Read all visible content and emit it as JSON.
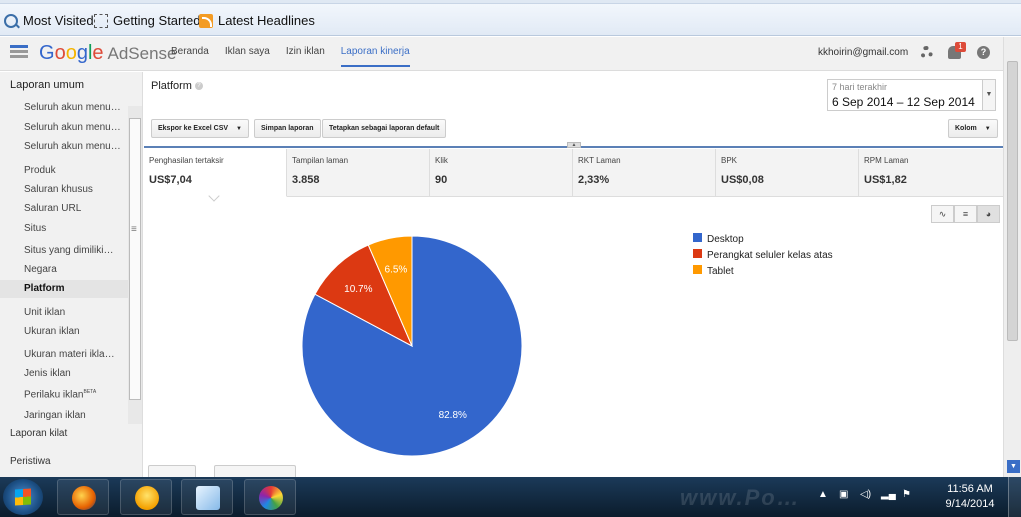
{
  "bookmarks": [
    {
      "label": "Most Visited",
      "icon": "most-visited-icon"
    },
    {
      "label": "Getting Started",
      "icon": "page-icon"
    },
    {
      "label": "Latest Headlines",
      "icon": "rss-icon"
    }
  ],
  "header": {
    "logo_google": "Google",
    "logo_product": "AdSense",
    "nav": [
      "Beranda",
      "Iklan saya",
      "Izin iklan",
      "Laporan kinerja"
    ],
    "active_nav": "Laporan kinerja",
    "email": "kkhoirin@gmail.com",
    "notification_count": "1",
    "help_glyph": "?"
  },
  "sidebar": {
    "title": "Laporan umum",
    "items": [
      "Seluruh akun menu…",
      "Seluruh akun menu…",
      "Seluruh akun menu…",
      "Produk",
      "Saluran khusus",
      "Saluran URL",
      "Situs",
      "Situs yang dimiliki…",
      "Negara",
      "Platform",
      "Unit iklan",
      "Ukuran iklan",
      "Ukuran materi ikla…",
      "Jenis iklan",
      "Perilaku iklan",
      "Jaringan iklan"
    ],
    "beta_tag": "BETA",
    "active_item": "Platform",
    "bottom_links": [
      "Laporan kilat",
      "Peristiwa"
    ]
  },
  "report": {
    "title": "Platform",
    "date_label": "7 hari terakhir",
    "date_range": "6 Sep 2014 – 12 Sep 2014",
    "buttons": {
      "export": "Ekspor ke Excel CSV",
      "save": "Simpan laporan",
      "default": "Tetapkan sebagai laporan default",
      "columns": "Kolom"
    },
    "metrics": [
      {
        "label": "Penghasilan tertaksir",
        "value": "US$7,04"
      },
      {
        "label": "Tampilan laman",
        "value": "3.858"
      },
      {
        "label": "Klik",
        "value": "90"
      },
      {
        "label": "RKT Laman",
        "value": "2,33%"
      },
      {
        "label": "BPK",
        "value": "US$0,08"
      },
      {
        "label": "RPM Laman",
        "value": "US$1,82"
      }
    ],
    "selected_metric": "Penghasilan tertaksir",
    "view_icons": [
      "line-chart-icon",
      "table-icon",
      "pie-chart-icon"
    ]
  },
  "chart_data": {
    "type": "pie",
    "categories": [
      "Desktop",
      "Perangkat seluler kelas atas",
      "Tablet"
    ],
    "values": [
      82.8,
      10.7,
      6.5
    ],
    "labels": [
      "82.8%",
      "10.7%",
      "6.5%"
    ],
    "colors": [
      "#3366cc",
      "#dc3912",
      "#ff9900"
    ],
    "legend_position": "right"
  },
  "taskbar": {
    "apps": [
      "firefox-icon",
      "yahoo-messenger-icon",
      "notes-icon",
      "paint-icon"
    ],
    "time": "11:56 AM",
    "date": "9/14/2014"
  }
}
